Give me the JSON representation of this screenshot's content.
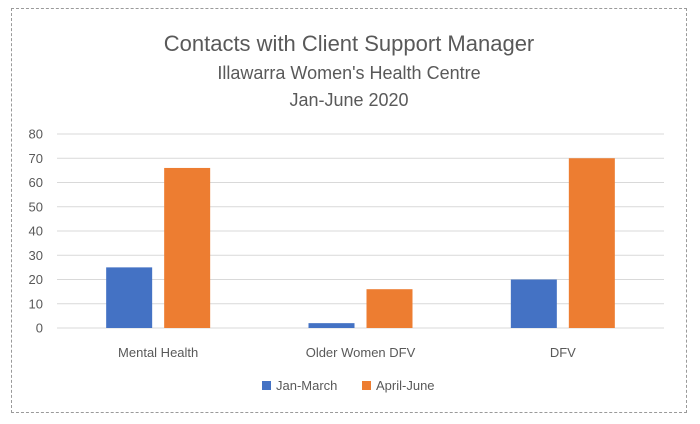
{
  "chart_data": {
    "type": "bar",
    "title": "Contacts with Client Support Manager",
    "subtitle_lines": [
      "Illawarra Women's Health Centre",
      "Jan-June 2020"
    ],
    "categories": [
      "Mental Health",
      "Older Women DFV",
      "DFV"
    ],
    "series": [
      {
        "name": "Jan-March",
        "values": [
          25,
          2,
          20
        ],
        "color": "#4472c4"
      },
      {
        "name": "April-June",
        "values": [
          66,
          16,
          70
        ],
        "color": "#ed7d31"
      }
    ],
    "ylim": [
      0,
      80
    ],
    "yticks": [
      0,
      10,
      20,
      30,
      40,
      50,
      60,
      70,
      80
    ],
    "grid": true,
    "legend_position": "bottom"
  }
}
